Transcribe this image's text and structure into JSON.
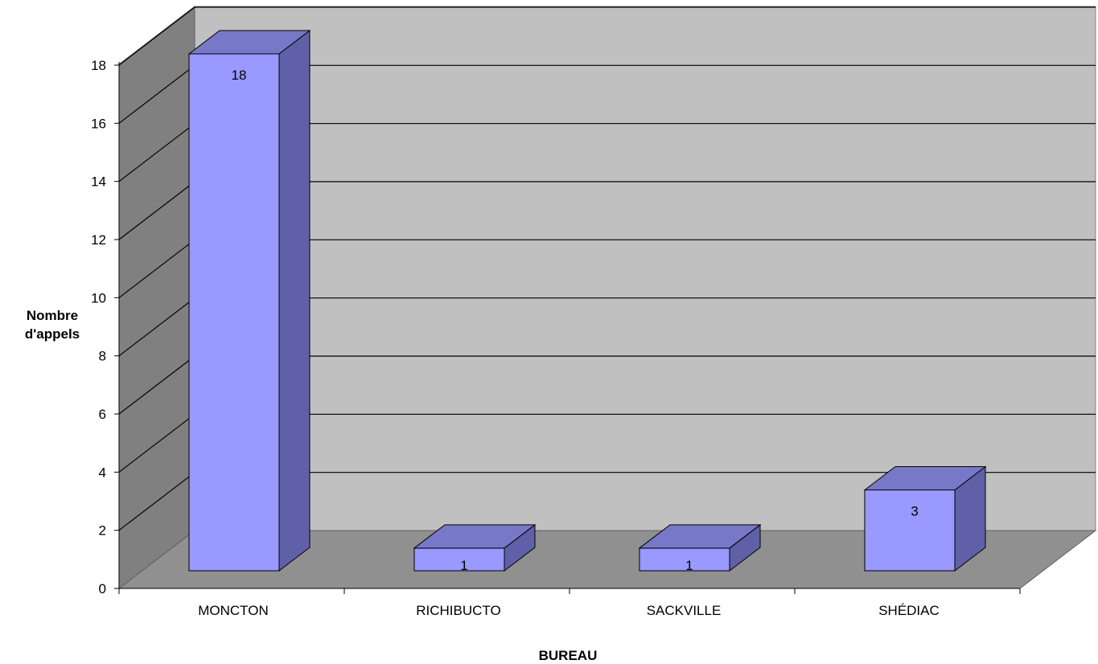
{
  "chart_data": {
    "type": "bar",
    "style": "3d-column",
    "categories": [
      "MONCTON",
      "RICHIBUCTO",
      "SACKVILLE",
      "SHÉDIAC"
    ],
    "values": [
      18,
      1,
      1,
      3
    ],
    "data_labels": [
      "18",
      "1",
      "1",
      "3"
    ],
    "xlabel": "BUREAU",
    "ylabel_lines": [
      "Nombre",
      "d'appels"
    ],
    "ylim": [
      0,
      18
    ],
    "yticks": [
      0,
      2,
      4,
      6,
      8,
      10,
      12,
      14,
      16,
      18
    ],
    "grid": true,
    "legend": "none",
    "colors": {
      "bar_front": "#9999ff",
      "bar_side": "#6060a8",
      "bar_top": "#7878c8",
      "back_wall": "#c0c0c0",
      "side_wall": "#808080",
      "floor": "#909090"
    }
  }
}
